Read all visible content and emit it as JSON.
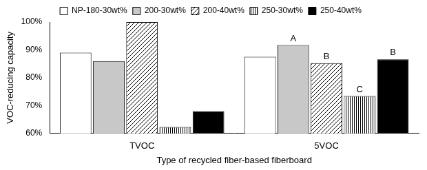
{
  "chart_data": {
    "type": "bar",
    "categories": [
      "TVOC",
      "5VOC"
    ],
    "series": [
      {
        "name": "NP-180-30wt%",
        "color": "#ffffff",
        "values": [
          89.0,
          87.5
        ]
      },
      {
        "name": "200-30wt%",
        "color": "#c8c8c8",
        "values": [
          86.0,
          91.7
        ]
      },
      {
        "name": "200-40wt%",
        "color": "#ffffff",
        "marker": "diagonal",
        "values": [
          100,
          85.2
        ]
      },
      {
        "name": "250-30wt%",
        "color": "#ffffff",
        "marker": "vertical",
        "values": [
          62.3,
          73.4
        ]
      },
      {
        "name": "250-40wt%",
        "color": "#000000",
        "values": [
          68.0,
          86.6
        ]
      }
    ],
    "x_label": "Type of recycled fiber-based fiberboard",
    "y_label": "VOC-reducing capacity",
    "ylim": [
      60,
      100
    ],
    "yticks": [
      {
        "value": 60,
        "label": "60%"
      },
      {
        "value": 70,
        "label": "70%"
      },
      {
        "value": 80,
        "label": "80%"
      },
      {
        "value": 90,
        "label": "90%"
      },
      {
        "value": 100,
        "label": "100%"
      }
    ],
    "grid": false,
    "legend": "top",
    "annotations": [
      {
        "text": "A",
        "category": "5VOC",
        "series": "200-30wt%"
      },
      {
        "text": "B",
        "category": "5VOC",
        "series": "200-40wt%"
      },
      {
        "text": "C",
        "category": "5VOC",
        "series": "250-30wt%"
      },
      {
        "text": "B",
        "category": "5VOC",
        "series": "250-40wt%"
      }
    ]
  }
}
